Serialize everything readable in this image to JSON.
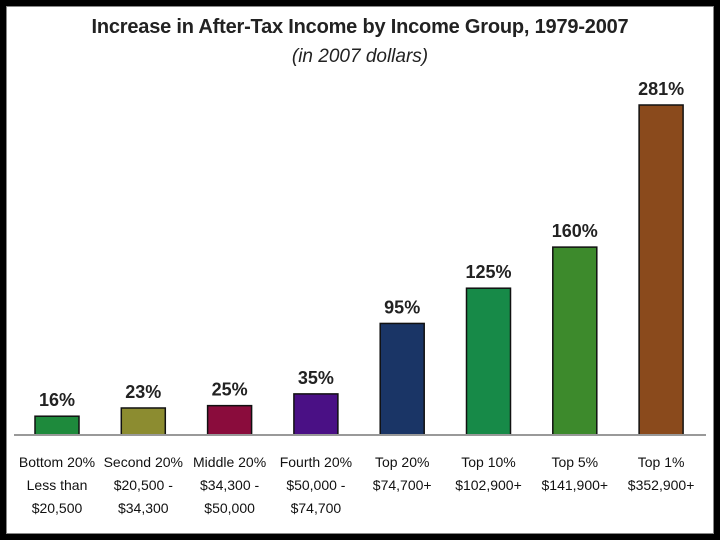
{
  "chart_data": {
    "type": "bar",
    "title": "Increase in After-Tax Income by Income Group, 1979-2007",
    "subtitle": "(in 2007 dollars)",
    "categories": [
      [
        "Bottom 20%",
        "Less than",
        "$20,500"
      ],
      [
        "Second 20%",
        "$20,500 -",
        "$34,300"
      ],
      [
        "Middle 20%",
        "$34,300 -",
        "$50,000"
      ],
      [
        "Fourth 20%",
        "$50,000 -",
        "$74,700"
      ],
      [
        "Top 20%",
        "$74,700+"
      ],
      [
        "Top 10%",
        "$102,900+"
      ],
      [
        "Top 5%",
        "$141,900+"
      ],
      [
        "Top 1%",
        "$352,900+"
      ]
    ],
    "values": [
      16,
      23,
      25,
      35,
      95,
      125,
      160,
      281
    ],
    "value_labels": [
      "16%",
      "23%",
      "25%",
      "35%",
      "95%",
      "125%",
      "160%",
      "281%"
    ],
    "colors": [
      "#1e8a3c",
      "#8c8c30",
      "#8a0c3c",
      "#4a1085",
      "#1a3566",
      "#178a48",
      "#3d8a2c",
      "#8a4a1c"
    ],
    "ylim": [
      0,
      300
    ],
    "xlabel": "",
    "ylabel": "",
    "grid": false
  }
}
